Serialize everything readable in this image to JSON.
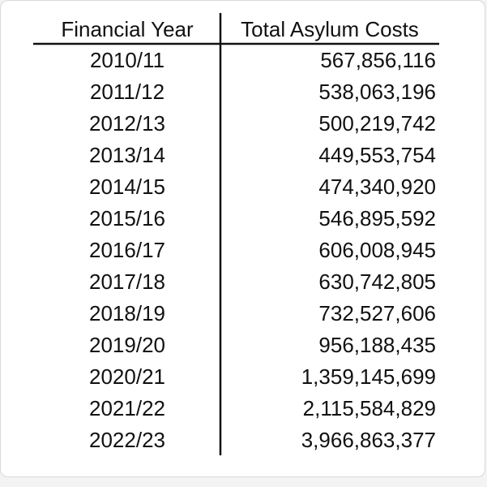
{
  "chart_data": {
    "type": "table",
    "columns": [
      "Financial Year",
      "Total Asylum Costs"
    ],
    "rows": [
      [
        "2010/11",
        "567,856,116"
      ],
      [
        "2011/12",
        "538,063,196"
      ],
      [
        "2012/13",
        "500,219,742"
      ],
      [
        "2013/14",
        "449,553,754"
      ],
      [
        "2014/15",
        "474,340,920"
      ],
      [
        "2015/16",
        "546,895,592"
      ],
      [
        "2016/17",
        "606,008,945"
      ],
      [
        "2017/18",
        "630,742,805"
      ],
      [
        "2018/19",
        "732,527,606"
      ],
      [
        "2019/20",
        "956,188,435"
      ],
      [
        "2020/21",
        "1,359,145,699"
      ],
      [
        "2021/22",
        "2,115,584,829"
      ],
      [
        "2022/23",
        "3,966,863,377"
      ]
    ],
    "values": [
      567856116,
      538063196,
      500219742,
      449553754,
      474340920,
      546895592,
      606008945,
      630742805,
      732527606,
      956188435,
      1359145699,
      2115584829,
      3966863377
    ]
  }
}
